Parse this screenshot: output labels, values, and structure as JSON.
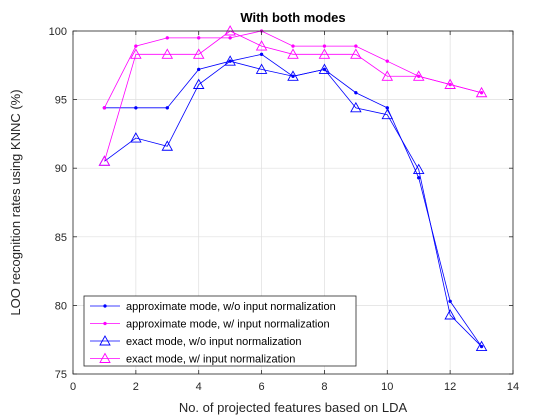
{
  "chart_data": {
    "type": "line",
    "title": "With both modes",
    "xlabel": "No. of projected features based on LDA",
    "ylabel": "LOO recognition rates using KNNC (%)",
    "xlim": [
      0,
      14
    ],
    "ylim": [
      75,
      100
    ],
    "xticks": [
      0,
      2,
      4,
      6,
      8,
      10,
      12,
      14
    ],
    "yticks": [
      75,
      80,
      85,
      90,
      95,
      100
    ],
    "grid": true,
    "legend_position": "bottom-left",
    "x": [
      1,
      2,
      3,
      4,
      5,
      6,
      7,
      8,
      9,
      10,
      11,
      12,
      13
    ],
    "series": [
      {
        "name": "approximate mode, w/o input normalization",
        "color": "#0000ff",
        "marker": "dot",
        "values": [
          94.4,
          94.4,
          94.4,
          97.2,
          97.8,
          98.3,
          96.7,
          97.2,
          95.5,
          94.4,
          89.3,
          80.3,
          77.0
        ]
      },
      {
        "name": "approximate mode, w/ input normalization",
        "color": "#ff00ff",
        "marker": "dot",
        "values": [
          94.4,
          98.9,
          99.5,
          99.5,
          99.5,
          100.0,
          98.9,
          98.9,
          98.9,
          97.8,
          96.7,
          96.1,
          95.5
        ]
      },
      {
        "name": "exact mode, w/o input normalization",
        "color": "#0000ff",
        "marker": "triangle",
        "values": [
          90.5,
          92.2,
          91.6,
          96.1,
          97.8,
          97.2,
          96.7,
          97.2,
          94.4,
          93.9,
          89.9,
          79.3,
          77.0
        ]
      },
      {
        "name": "exact mode, w/ input normalization",
        "color": "#ff00ff",
        "marker": "triangle",
        "values": [
          90.5,
          98.3,
          98.3,
          98.3,
          100.0,
          98.9,
          98.3,
          98.3,
          98.3,
          96.7,
          96.7,
          96.1,
          95.5
        ]
      }
    ]
  }
}
